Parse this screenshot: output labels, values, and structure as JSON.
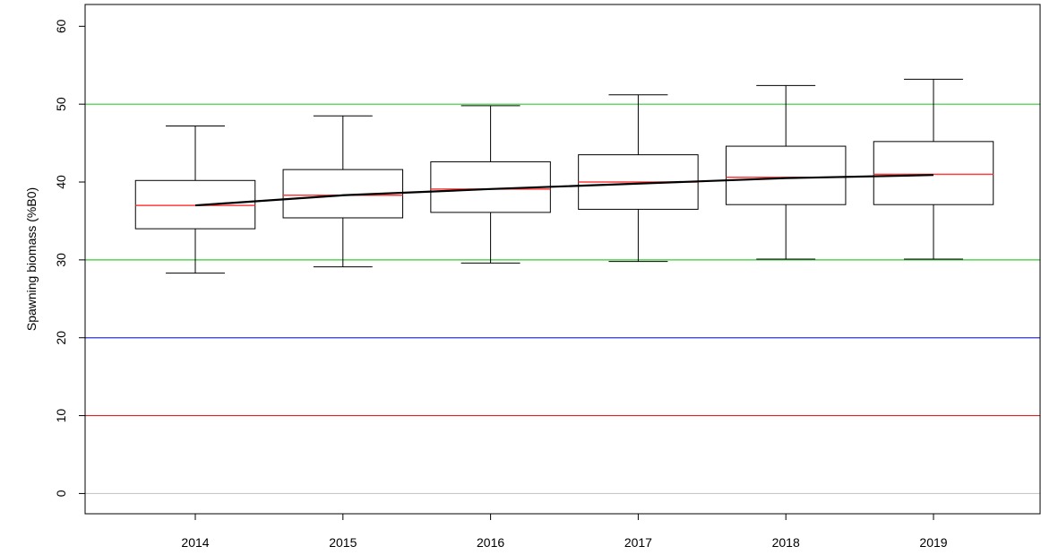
{
  "chart_data": {
    "type": "box",
    "ylabel": "Spawning biomass (%B0)",
    "categories": [
      "2014",
      "2015",
      "2016",
      "2017",
      "2018",
      "2019"
    ],
    "low": [
      28.3,
      29.1,
      29.6,
      29.8,
      30.1,
      30.1
    ],
    "q1": [
      34.0,
      35.4,
      36.1,
      36.5,
      37.1,
      37.1
    ],
    "median": [
      37.0,
      38.3,
      39.1,
      40.0,
      40.6,
      41.0
    ],
    "q3": [
      40.2,
      41.6,
      42.6,
      43.5,
      44.6,
      45.2
    ],
    "high": [
      47.2,
      48.5,
      49.8,
      51.2,
      52.4,
      53.2
    ],
    "mean": [
      37.0,
      38.3,
      39.1,
      39.8,
      40.5,
      40.9
    ],
    "box_color": "#000000",
    "median_color": "#ff3b3b",
    "mean_color": "#000000",
    "hlines": [
      {
        "value": 50,
        "color": "#33cc33"
      },
      {
        "value": 30,
        "color": "#33cc33"
      },
      {
        "value": 20,
        "color": "#3333cc"
      },
      {
        "value": 10,
        "color": "#dd2222"
      },
      {
        "value": 0,
        "color": "#c8c8c8"
      }
    ],
    "ylim": [
      -2.6,
      62.8
    ],
    "yticks": [
      0,
      10,
      20,
      30,
      40,
      50,
      60
    ]
  }
}
